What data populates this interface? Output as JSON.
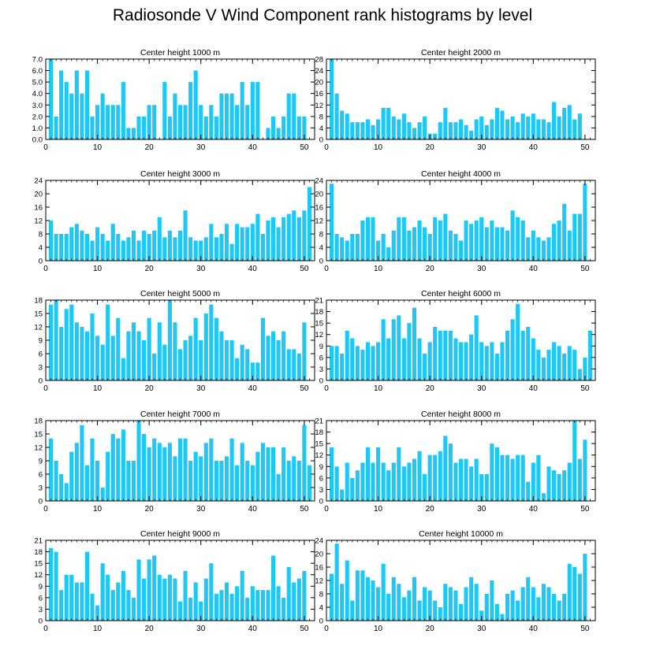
{
  "title": "Radiosonde V Wind Component rank histograms by level",
  "colors": {
    "bar": "#1ec8f5",
    "axis": "#000000",
    "background": "#ffffff"
  },
  "chart_data": [
    {
      "type": "bar",
      "title": "Center height 1000 m",
      "ylim": [
        0,
        7
      ],
      "yticks": [
        0,
        1,
        2,
        3,
        4,
        5,
        6,
        7
      ],
      "ytick_labels": [
        "0.0",
        "1.0",
        "2.0",
        "3.0",
        "4.0",
        "5.0",
        "6.0",
        "7.0"
      ],
      "xlim": [
        0,
        52
      ],
      "xticks": [
        0,
        10,
        20,
        30,
        40,
        50
      ],
      "values": [
        7,
        2,
        6,
        5,
        4,
        6,
        4,
        6,
        2,
        3,
        4,
        3,
        3,
        3,
        5,
        1,
        1,
        2,
        2,
        3,
        3,
        0,
        5,
        2,
        4,
        3,
        3,
        5,
        6,
        3,
        2,
        3,
        2,
        4,
        4,
        4,
        3,
        5,
        3,
        5,
        5,
        0,
        1,
        2,
        1,
        2,
        4,
        4,
        2,
        2
      ]
    },
    {
      "type": "bar",
      "title": "Center height 2000 m",
      "ylim": [
        0,
        28
      ],
      "yticks": [
        0,
        4,
        8,
        12,
        16,
        20,
        24,
        28
      ],
      "ytick_labels": [
        "0",
        "4",
        "8",
        "12",
        "16",
        "20",
        "24",
        "28"
      ],
      "xlim": [
        0,
        52
      ],
      "xticks": [
        0,
        10,
        20,
        30,
        40,
        50
      ],
      "values": [
        28,
        16,
        10,
        9,
        6,
        6,
        6,
        7,
        5,
        7,
        11,
        11,
        8,
        7,
        9,
        6,
        4,
        6,
        8,
        2,
        2,
        6,
        11,
        6,
        6,
        7,
        5,
        3,
        7,
        8,
        5,
        7,
        11,
        10,
        7,
        8,
        6,
        9,
        8,
        9,
        7,
        7,
        6,
        13,
        8,
        11,
        12,
        7,
        9
      ]
    },
    {
      "type": "bar",
      "title": "Center height 3000 m",
      "ylim": [
        0,
        24
      ],
      "yticks": [
        0,
        4,
        8,
        12,
        16,
        20,
        24
      ],
      "ytick_labels": [
        "0",
        "4",
        "8",
        "12",
        "16",
        "20",
        "24"
      ],
      "xlim": [
        0,
        52
      ],
      "xticks": [
        0,
        10,
        20,
        30,
        40,
        50
      ],
      "values": [
        12,
        8,
        8,
        8,
        10,
        11,
        9,
        8,
        6,
        10,
        8,
        6,
        11,
        8,
        6,
        7,
        9,
        6,
        9,
        8,
        9,
        13,
        7,
        9,
        7,
        9,
        15,
        7,
        6,
        6,
        7,
        11,
        7,
        8,
        11,
        5,
        11,
        10,
        10,
        11,
        14,
        8,
        12,
        13,
        10,
        13,
        14,
        15,
        13,
        15,
        22
      ]
    },
    {
      "type": "bar",
      "title": "Center height 4000 m",
      "ylim": [
        0,
        24
      ],
      "yticks": [
        0,
        4,
        8,
        12,
        16,
        20,
        24
      ],
      "ytick_labels": [
        "0",
        "4",
        "8",
        "12",
        "16",
        "20",
        "24"
      ],
      "xlim": [
        0,
        52
      ],
      "xticks": [
        0,
        10,
        20,
        30,
        40,
        50
      ],
      "values": [
        23,
        8,
        7,
        6,
        8,
        8,
        12,
        13,
        13,
        6,
        8,
        4,
        9,
        13,
        13,
        9,
        10,
        12,
        10,
        8,
        13,
        12,
        14,
        9,
        8,
        6,
        12,
        11,
        12,
        13,
        10,
        12,
        10,
        10,
        9,
        15,
        13,
        12,
        7,
        9,
        7,
        6,
        7,
        11,
        12,
        17,
        9,
        14,
        14,
        23
      ]
    },
    {
      "type": "bar",
      "title": "Center height 5000 m",
      "ylim": [
        0,
        18
      ],
      "yticks": [
        0,
        3,
        6,
        9,
        12,
        15,
        18
      ],
      "ytick_labels": [
        "0",
        "3",
        "6",
        "9",
        "12",
        "15",
        "18"
      ],
      "xlim": [
        0,
        52
      ],
      "xticks": [
        0,
        10,
        20,
        30,
        40,
        50
      ],
      "values": [
        17,
        18,
        12,
        16,
        17,
        13,
        12,
        11,
        15,
        10,
        8,
        17,
        10,
        14,
        5,
        11,
        13,
        11,
        9,
        14,
        6,
        13,
        8,
        18,
        13,
        7,
        9,
        10,
        14,
        9,
        15,
        17,
        14,
        11,
        9,
        9,
        5,
        8,
        7,
        4,
        4,
        14,
        10,
        11,
        9,
        11,
        7,
        7,
        6,
        13
      ]
    },
    {
      "type": "bar",
      "title": "Center height 6000 m",
      "ylim": [
        0,
        21
      ],
      "yticks": [
        0,
        3,
        6,
        9,
        12,
        15,
        18,
        21
      ],
      "ytick_labels": [
        "0",
        "3",
        "6",
        "9",
        "12",
        "15",
        "18",
        "21"
      ],
      "xlim": [
        0,
        52
      ],
      "xticks": [
        0,
        10,
        20,
        30,
        40,
        50
      ],
      "values": [
        9,
        9,
        7,
        13,
        11,
        9,
        8,
        10,
        9,
        10,
        16,
        11,
        16,
        17,
        11,
        15,
        19,
        11,
        7,
        10,
        14,
        13,
        13,
        13,
        11,
        10,
        10,
        12,
        17,
        10,
        9,
        10,
        7,
        10,
        13,
        16,
        20,
        13,
        14,
        11,
        8,
        6,
        8,
        10,
        9,
        7,
        9,
        8,
        3,
        6,
        13
      ]
    },
    {
      "type": "bar",
      "title": "Center height 7000 m",
      "ylim": [
        0,
        18
      ],
      "yticks": [
        0,
        3,
        6,
        9,
        12,
        15,
        18
      ],
      "ytick_labels": [
        "0",
        "3",
        "6",
        "9",
        "12",
        "15",
        "18"
      ],
      "xlim": [
        0,
        52
      ],
      "xticks": [
        0,
        10,
        20,
        30,
        40,
        50
      ],
      "values": [
        14,
        9,
        6,
        4,
        11,
        13,
        17,
        8,
        14,
        9,
        3,
        11,
        15,
        14,
        16,
        9,
        9,
        18,
        15,
        12,
        14,
        13,
        12,
        13,
        10,
        14,
        14,
        9,
        11,
        10,
        13,
        14,
        9,
        9,
        10,
        14,
        8,
        13,
        9,
        8,
        11,
        13,
        12,
        12,
        6,
        12,
        9,
        10,
        9,
        17,
        8
      ]
    },
    {
      "type": "bar",
      "title": "Center height 8000 m",
      "ylim": [
        0,
        21
      ],
      "yticks": [
        0,
        3,
        6,
        9,
        12,
        15,
        18,
        21
      ],
      "ytick_labels": [
        "0",
        "3",
        "6",
        "9",
        "12",
        "15",
        "18",
        "21"
      ],
      "xlim": [
        0,
        52
      ],
      "xticks": [
        0,
        10,
        20,
        30,
        40,
        50
      ],
      "values": [
        14,
        9,
        3,
        10,
        6,
        8,
        10,
        14,
        10,
        14,
        10,
        8,
        10,
        14,
        9,
        10,
        11,
        13,
        7,
        12,
        12,
        13,
        17,
        15,
        10,
        11,
        11,
        9,
        11,
        7,
        7,
        15,
        14,
        12,
        12,
        11,
        12,
        12,
        5,
        10,
        12,
        2,
        9,
        8,
        7,
        8,
        10,
        21,
        11,
        16
      ]
    },
    {
      "type": "bar",
      "title": "Center height 9000 m",
      "ylim": [
        0,
        21
      ],
      "yticks": [
        0,
        3,
        6,
        9,
        12,
        15,
        18,
        21
      ],
      "ytick_labels": [
        "0",
        "3",
        "6",
        "9",
        "12",
        "15",
        "18",
        "21"
      ],
      "xlim": [
        0,
        52
      ],
      "xticks": [
        0,
        10,
        20,
        30,
        40,
        50
      ],
      "values": [
        19,
        18,
        8,
        12,
        12,
        10,
        10,
        18,
        7,
        4,
        15,
        12,
        8,
        10,
        13,
        8,
        6,
        16,
        11,
        16,
        17,
        12,
        11,
        12,
        11,
        5,
        13,
        6,
        10,
        5,
        11,
        15,
        7,
        8,
        10,
        7,
        9,
        13,
        6,
        9,
        8,
        8,
        8,
        17,
        9,
        6,
        14,
        10,
        11,
        13
      ]
    },
    {
      "type": "bar",
      "title": "Center height 10000 m",
      "ylim": [
        0,
        24
      ],
      "yticks": [
        0,
        4,
        8,
        12,
        16,
        20,
        24
      ],
      "ytick_labels": [
        "0",
        "4",
        "8",
        "12",
        "16",
        "20",
        "24"
      ],
      "xlim": [
        0,
        52
      ],
      "xticks": [
        0,
        10,
        20,
        30,
        40,
        50
      ],
      "values": [
        14,
        23,
        11,
        18,
        6,
        15,
        15,
        13,
        12,
        10,
        17,
        8,
        13,
        11,
        7,
        9,
        13,
        6,
        10,
        9,
        6,
        4,
        11,
        10,
        9,
        5,
        10,
        13,
        11,
        3,
        8,
        12,
        5,
        2,
        8,
        9,
        6,
        10,
        13,
        10,
        7,
        11,
        10,
        8,
        6,
        8,
        17,
        16,
        14,
        20
      ]
    }
  ]
}
